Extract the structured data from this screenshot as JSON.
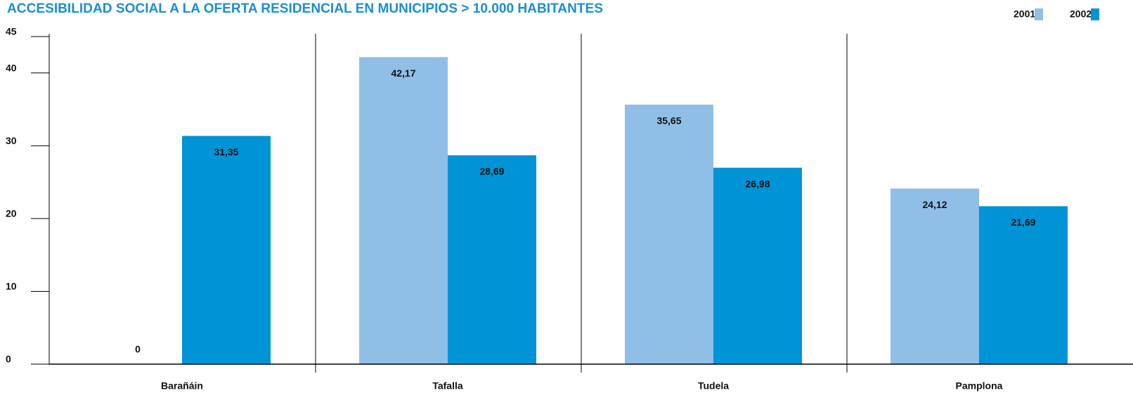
{
  "chart_data": {
    "type": "bar",
    "title": "ACCESIBILIDAD SOCIAL A LA OFERTA RESIDENCIAL EN MUNICIPIOS > 10.000 HABITANTES",
    "categories": [
      "Barañáin",
      "Tafalla",
      "Tudela",
      "Pamplona"
    ],
    "series": [
      {
        "name": "2001",
        "color": "#8fbfe7",
        "values": [
          0,
          42.17,
          35.65,
          24.12
        ],
        "value_labels": [
          "0",
          "42,17",
          "35,65",
          "24,12"
        ]
      },
      {
        "name": "2002",
        "color": "#0093d6",
        "values": [
          31.35,
          28.69,
          26.98,
          21.69
        ],
        "value_labels": [
          "31,35",
          "28,69",
          "26,98",
          "21,69"
        ]
      }
    ],
    "ylim": [
      0,
      45
    ],
    "yticks": [
      0,
      10,
      20,
      30,
      40,
      45
    ],
    "legend": "top-right"
  }
}
